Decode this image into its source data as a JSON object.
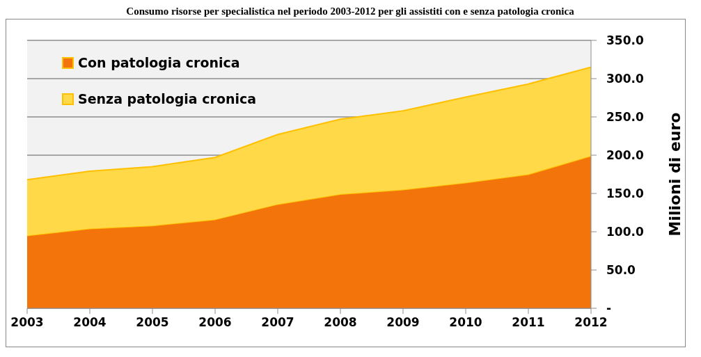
{
  "chart_data": {
    "type": "area",
    "title": "Consumo risorse per specialistica nel periodo 2003-2012 per gli assistiti con e senza patologia cronica",
    "ylabel": "Milioni di euro",
    "categories": [
      "2003",
      "2004",
      "2005",
      "2006",
      "2007",
      "2008",
      "2009",
      "2010",
      "2011",
      "2012"
    ],
    "series": [
      {
        "name": "Con patologia cronica",
        "color": "#f2740b",
        "values": [
          95,
          104,
          108,
          116,
          136,
          149,
          155,
          164,
          175,
          199
        ]
      },
      {
        "name": "Senza patologia cronica",
        "color": "#ffd948",
        "values": [
          73,
          75,
          77,
          81,
          91,
          98,
          103,
          112,
          118,
          116
        ]
      }
    ],
    "stacked": true,
    "ylim": [
      0,
      350
    ],
    "yticks": [
      {
        "value": 0,
        "label": "-"
      },
      {
        "value": 50,
        "label": "50.0"
      },
      {
        "value": 100,
        "label": "100.0"
      },
      {
        "value": 150,
        "label": "150.0"
      },
      {
        "value": 200,
        "label": "200.0"
      },
      {
        "value": 250,
        "label": "250.0"
      },
      {
        "value": 300,
        "label": "300.0"
      },
      {
        "value": 350,
        "label": "350.0"
      }
    ],
    "grid": "y",
    "legend": "top left"
  }
}
